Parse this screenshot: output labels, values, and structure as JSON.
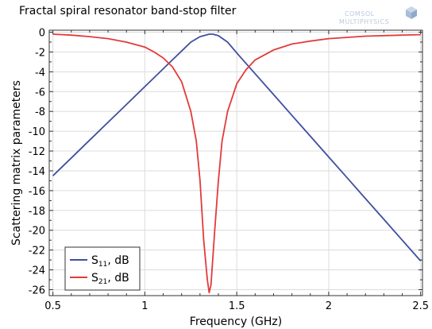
{
  "chart_data": {
    "type": "line",
    "title": "Fractal spiral resonator band-stop filter",
    "xlabel": "Frequency (GHz)",
    "ylabel": "Scattering matrix parameters",
    "xlim": [
      0.48,
      2.51
    ],
    "ylim": [
      -26.6,
      0.2
    ],
    "xticks": [
      0.5,
      1,
      1.5,
      2,
      2.5
    ],
    "xtick_labels": [
      "0.5",
      "1",
      "1.5",
      "2",
      "2.5"
    ],
    "yticks": [
      0,
      -2,
      -4,
      -6,
      -8,
      -10,
      -12,
      -14,
      -16,
      -18,
      -20,
      -22,
      -24,
      -26
    ],
    "ytick_labels": [
      "0",
      "-2",
      "-4",
      "-6",
      "-8",
      "-10",
      "-12",
      "-14",
      "-16",
      "-18",
      "-20",
      "-22",
      "-24",
      "-26"
    ],
    "grid": true,
    "legend_position": "bottom-left",
    "series": [
      {
        "name": "S11, dB",
        "name_main": "S",
        "name_sub": "11",
        "name_suffix": ", dB",
        "color": "#3f4fa0",
        "x": [
          0.5,
          0.6,
          0.7,
          0.8,
          0.9,
          1.0,
          1.1,
          1.15,
          1.2,
          1.25,
          1.3,
          1.35,
          1.37,
          1.4,
          1.45,
          1.5,
          1.6,
          1.7,
          1.8,
          1.9,
          2.0,
          2.1,
          2.2,
          2.3,
          2.4,
          2.5
        ],
        "y": [
          -14.5,
          -12.7,
          -10.9,
          -9.1,
          -7.3,
          -5.5,
          -3.7,
          -2.8,
          -1.9,
          -1.0,
          -0.45,
          -0.2,
          -0.2,
          -0.35,
          -1.0,
          -2.1,
          -4.2,
          -6.3,
          -8.4,
          -10.5,
          -12.6,
          -14.7,
          -16.8,
          -18.9,
          -21.0,
          -23.1
        ]
      },
      {
        "name": "S21, dB",
        "name_main": "S",
        "name_sub": "21",
        "name_suffix": ", dB",
        "color": "#e23b3b",
        "x": [
          0.5,
          0.6,
          0.7,
          0.8,
          0.9,
          1.0,
          1.05,
          1.1,
          1.15,
          1.2,
          1.25,
          1.28,
          1.3,
          1.32,
          1.34,
          1.35,
          1.36,
          1.38,
          1.4,
          1.42,
          1.45,
          1.5,
          1.55,
          1.6,
          1.7,
          1.8,
          1.9,
          2.0,
          2.2,
          2.4,
          2.5
        ],
        "y": [
          -0.2,
          -0.3,
          -0.45,
          -0.65,
          -1.0,
          -1.5,
          -2.0,
          -2.6,
          -3.5,
          -5.0,
          -8.0,
          -11.0,
          -15.0,
          -21.0,
          -25.0,
          -26.3,
          -25.5,
          -20.0,
          -15.0,
          -11.0,
          -8.0,
          -5.2,
          -3.8,
          -2.8,
          -1.8,
          -1.2,
          -0.9,
          -0.65,
          -0.4,
          -0.3,
          -0.25
        ]
      }
    ]
  },
  "logo": {
    "line1": "COMSOL",
    "line2": "MULTIPHYSICS",
    "icon": "comsol-cube-icon"
  }
}
